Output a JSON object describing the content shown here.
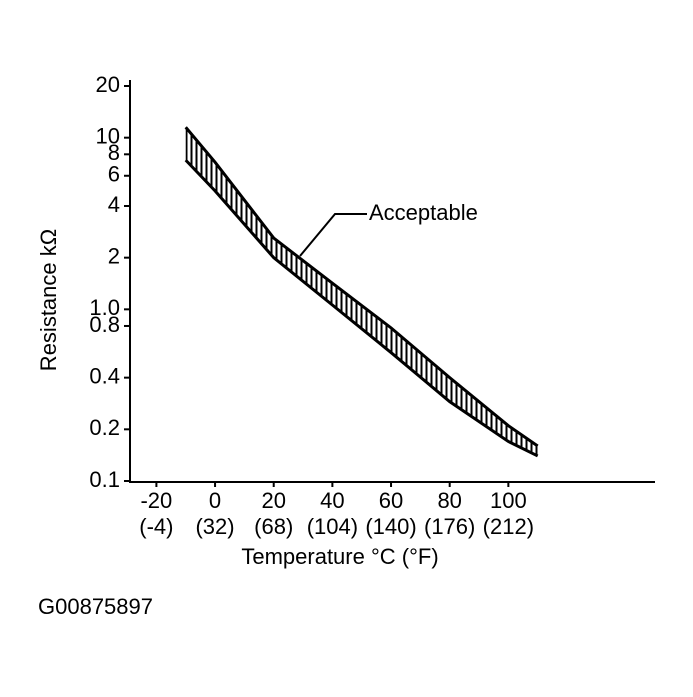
{
  "chart_data": {
    "type": "band",
    "x_label": "Temperature °C (°F)",
    "y_label": "Resistance kΩ",
    "annotation": "Acceptable",
    "caption": "G00875897",
    "x": [
      -10,
      0,
      20,
      40,
      60,
      80,
      100,
      110
    ],
    "series": [
      {
        "color": "#000000",
        "values": [
          11.5,
          7.2,
          2.6,
          1.42,
          0.78,
          0.4,
          0.21,
          0.16
        ]
      },
      {
        "color": "#000000",
        "values": [
          7.4,
          4.9,
          2.0,
          1.06,
          0.56,
          0.29,
          0.17,
          0.14
        ]
      }
    ],
    "xlim": [
      -29,
      150
    ],
    "xticks": [
      {
        "value": -20,
        "label": "-20",
        "sublabel": "(-4)"
      },
      {
        "value": 0,
        "label": "0",
        "sublabel": "(32)"
      },
      {
        "value": 20,
        "label": "20",
        "sublabel": "(68)"
      },
      {
        "value": 40,
        "label": "40",
        "sublabel": "(104)"
      },
      {
        "value": 60,
        "label": "60",
        "sublabel": "(140)"
      },
      {
        "value": 80,
        "label": "80",
        "sublabel": "(176)"
      },
      {
        "value": 100,
        "label": "100",
        "sublabel": "(212)"
      }
    ],
    "ylim": [
      0.1,
      20
    ],
    "yticks": [
      0.1,
      0.2,
      0.4,
      0.8,
      {
        "value": 1,
        "label": "1.0"
      },
      2,
      4,
      6,
      8,
      10,
      20
    ],
    "log_y": true,
    "hatch": true
  }
}
